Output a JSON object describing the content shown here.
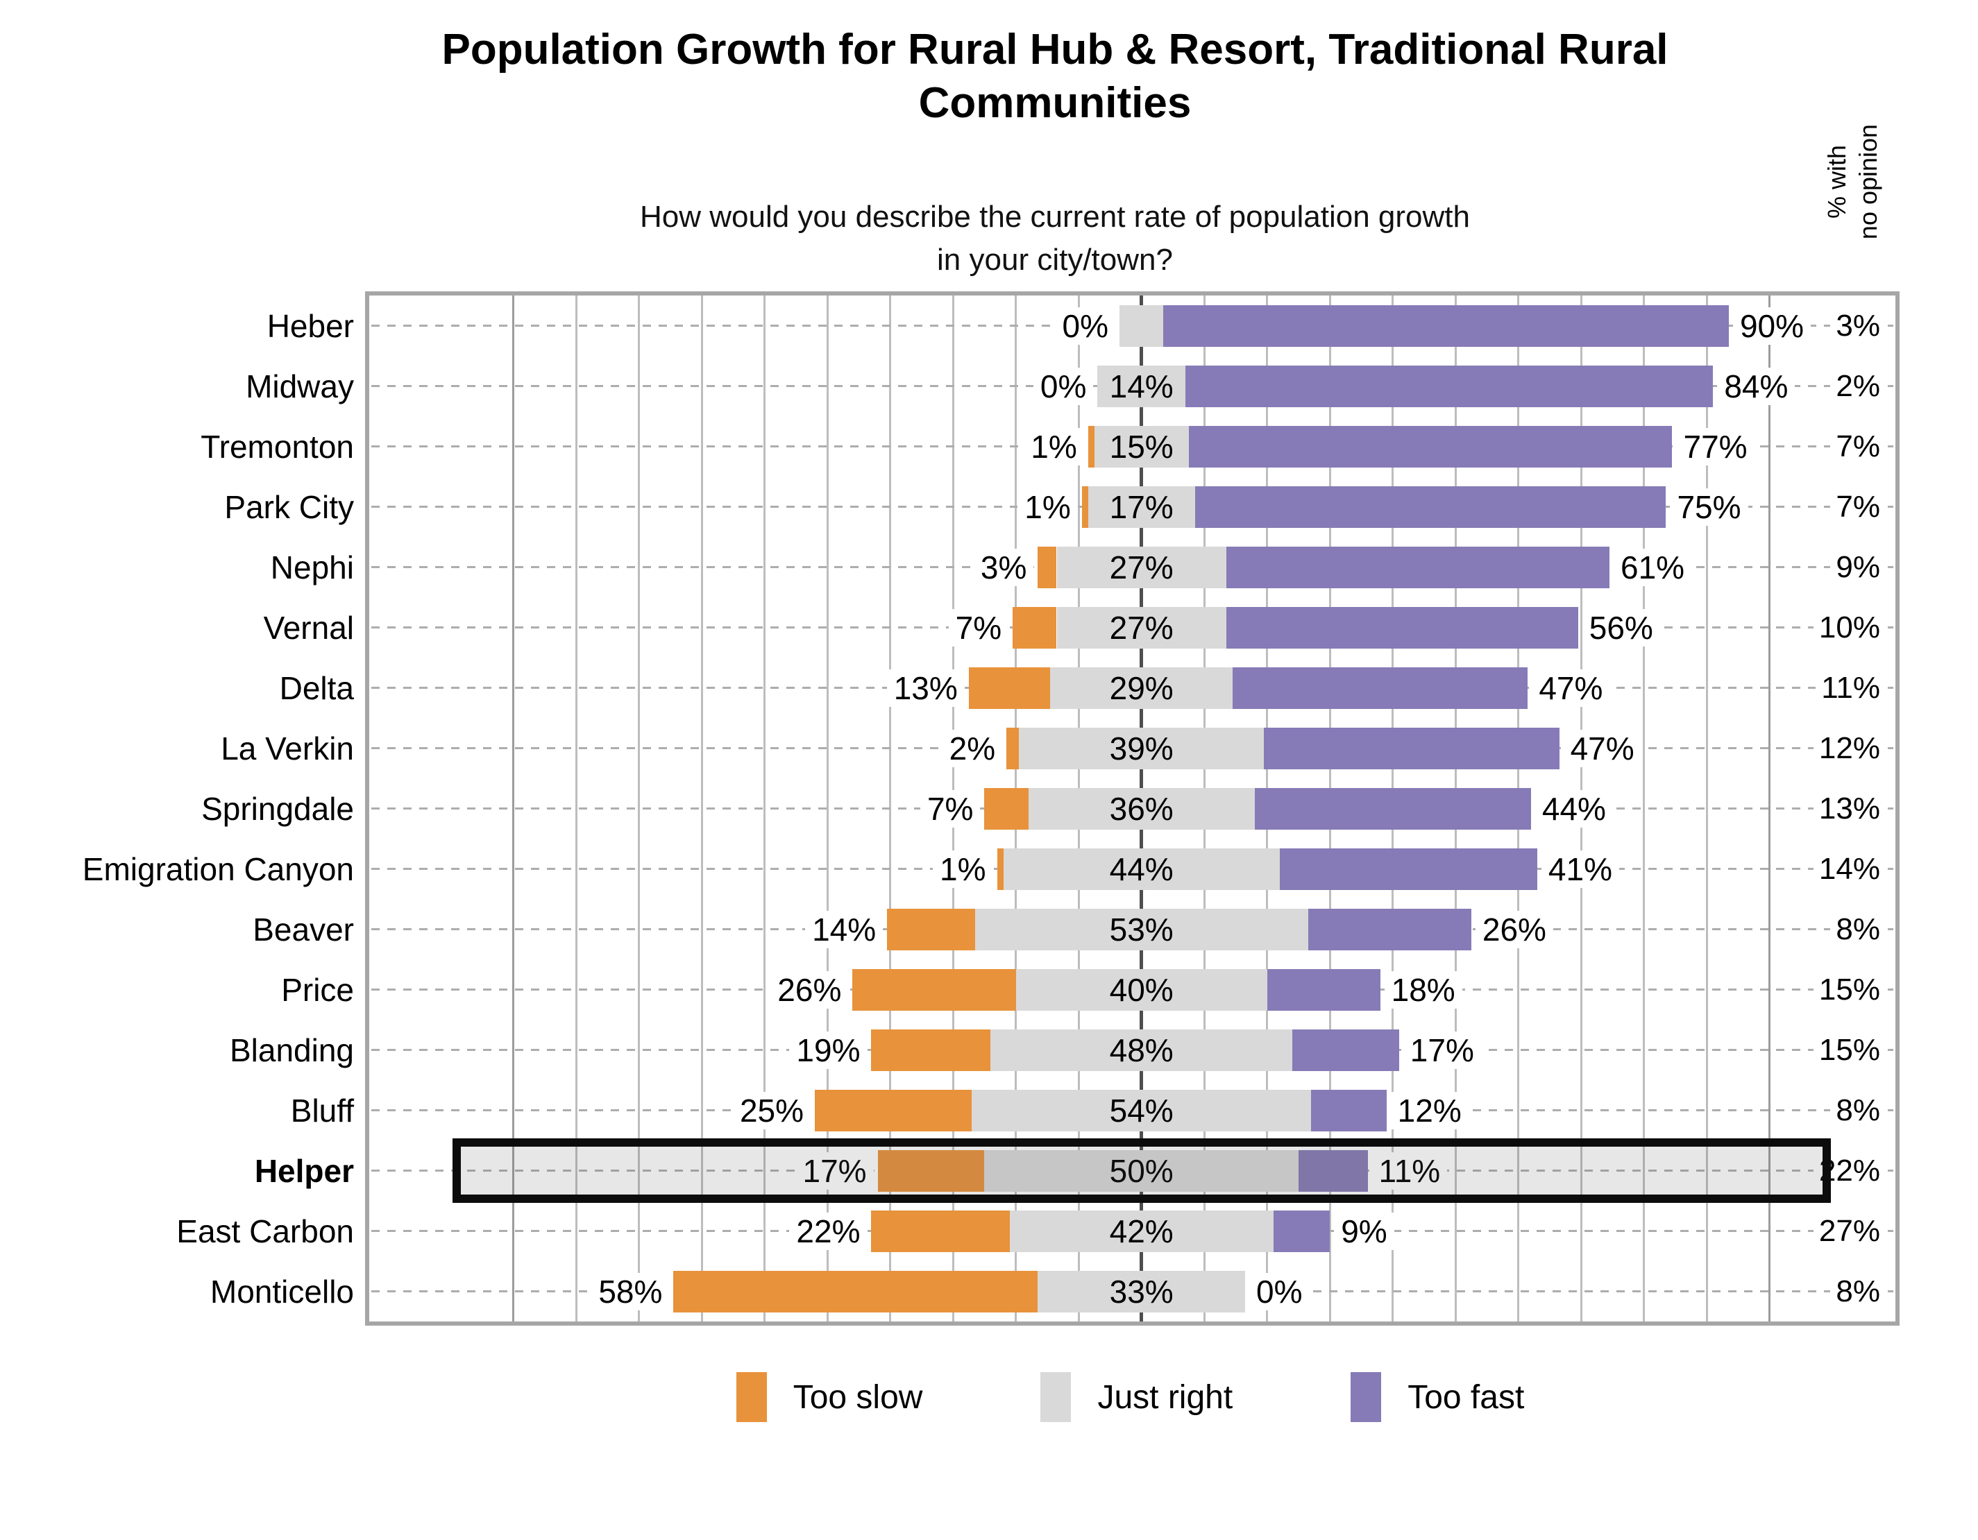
{
  "header": {
    "title_line1": "Population Growth for Rural Hub & Resort, Traditional Rural",
    "title_line2": "Communities",
    "subtitle_line1": "How would you describe the current rate of population growth",
    "subtitle_line2": "in your city/town?"
  },
  "right_axis_header": {
    "line1": "% with",
    "line2": "no opinion"
  },
  "legend": [
    {
      "label": "Too slow",
      "color": "#E8923B"
    },
    {
      "label": "Just right",
      "color": "#D9D9D9"
    },
    {
      "label": "Too fast",
      "color": "#867BB6"
    }
  ],
  "colors": {
    "too_slow": "#E8923B",
    "just_right": "#D9D9D9",
    "too_fast": "#867BB6",
    "grid": "#BDBDBD",
    "center_line": "#4E4E4E",
    "plot_border": "#A6A6A6",
    "highlight_border": "#0C0C0C"
  },
  "chart_data": {
    "type": "diverging_stacked_bar",
    "title": "Population Growth for Rural Hub & Resort, Traditional Rural Communities",
    "question": "How would you describe the current rate of population growth in your city/town?",
    "series_names": [
      "Too slow",
      "Just right",
      "Too fast"
    ],
    "extra_column": "% with no opinion",
    "layout": {
      "center_pct": 50.6,
      "pct_per_point": 0.4116,
      "grid_step_points": 10,
      "grid_range_points": 100,
      "legend_position": "bottom",
      "gridlines": true
    },
    "rows": [
      {
        "name": "Heber",
        "too_slow": 0,
        "too_slow_label": "0%",
        "just_right": 7,
        "just_right_label": "",
        "too_fast": 90,
        "too_fast_label": "90%",
        "no_opinion_label": "3%",
        "highlighted": false
      },
      {
        "name": "Midway",
        "too_slow": 0,
        "too_slow_label": "0%",
        "just_right": 14,
        "just_right_label": "14%",
        "too_fast": 84,
        "too_fast_label": "84%",
        "no_opinion_label": "2%",
        "highlighted": false
      },
      {
        "name": "Tremonton",
        "too_slow": 1,
        "too_slow_label": "1%",
        "just_right": 15,
        "just_right_label": "15%",
        "too_fast": 77,
        "too_fast_label": "77%",
        "no_opinion_label": "7%",
        "highlighted": false
      },
      {
        "name": "Park City",
        "too_slow": 1,
        "too_slow_label": "1%",
        "just_right": 17,
        "just_right_label": "17%",
        "too_fast": 75,
        "too_fast_label": "75%",
        "no_opinion_label": "7%",
        "highlighted": false
      },
      {
        "name": "Nephi",
        "too_slow": 3,
        "too_slow_label": "3%",
        "just_right": 27,
        "just_right_label": "27%",
        "too_fast": 61,
        "too_fast_label": "61%",
        "no_opinion_label": "9%",
        "highlighted": false
      },
      {
        "name": "Vernal",
        "too_slow": 7,
        "too_slow_label": "7%",
        "just_right": 27,
        "just_right_label": "27%",
        "too_fast": 56,
        "too_fast_label": "56%",
        "no_opinion_label": "10%",
        "highlighted": false
      },
      {
        "name": "Delta",
        "too_slow": 13,
        "too_slow_label": "13%",
        "just_right": 29,
        "just_right_label": "29%",
        "too_fast": 47,
        "too_fast_label": "47%",
        "no_opinion_label": "11%",
        "highlighted": false
      },
      {
        "name": "La Verkin",
        "too_slow": 2,
        "too_slow_label": "2%",
        "just_right": 39,
        "just_right_label": "39%",
        "too_fast": 47,
        "too_fast_label": "47%",
        "no_opinion_label": "12%",
        "highlighted": false
      },
      {
        "name": "Springdale",
        "too_slow": 7,
        "too_slow_label": "7%",
        "just_right": 36,
        "just_right_label": "36%",
        "too_fast": 44,
        "too_fast_label": "44%",
        "no_opinion_label": "13%",
        "highlighted": false
      },
      {
        "name": "Emigration Canyon",
        "too_slow": 1,
        "too_slow_label": "1%",
        "just_right": 44,
        "just_right_label": "44%",
        "too_fast": 41,
        "too_fast_label": "41%",
        "no_opinion_label": "14%",
        "highlighted": false
      },
      {
        "name": "Beaver",
        "too_slow": 14,
        "too_slow_label": "14%",
        "just_right": 53,
        "just_right_label": "53%",
        "too_fast": 26,
        "too_fast_label": "26%",
        "no_opinion_label": "8%",
        "highlighted": false
      },
      {
        "name": "Price",
        "too_slow": 26,
        "too_slow_label": "26%",
        "just_right": 40,
        "just_right_label": "40%",
        "too_fast": 18,
        "too_fast_label": "18%",
        "no_opinion_label": "15%",
        "highlighted": false
      },
      {
        "name": "Blanding",
        "too_slow": 19,
        "too_slow_label": "19%",
        "just_right": 48,
        "just_right_label": "48%",
        "too_fast": 17,
        "too_fast_label": "17%",
        "no_opinion_label": "15%",
        "highlighted": false
      },
      {
        "name": "Bluff",
        "too_slow": 25,
        "too_slow_label": "25%",
        "just_right": 54,
        "just_right_label": "54%",
        "too_fast": 12,
        "too_fast_label": "12%",
        "no_opinion_label": "8%",
        "highlighted": false
      },
      {
        "name": "Helper",
        "too_slow": 17,
        "too_slow_label": "17%",
        "just_right": 50,
        "just_right_label": "50%",
        "too_fast": 11,
        "too_fast_label": "11%",
        "no_opinion_label": "22%",
        "highlighted": true
      },
      {
        "name": "East Carbon",
        "too_slow": 22,
        "too_slow_label": "22%",
        "just_right": 42,
        "just_right_label": "42%",
        "too_fast": 9,
        "too_fast_label": "9%",
        "no_opinion_label": "27%",
        "highlighted": false
      },
      {
        "name": "Monticello",
        "too_slow": 58,
        "too_slow_label": "58%",
        "just_right": 33,
        "just_right_label": "33%",
        "too_fast": 0,
        "too_fast_label": "0%",
        "no_opinion_label": "8%",
        "highlighted": false
      }
    ]
  }
}
